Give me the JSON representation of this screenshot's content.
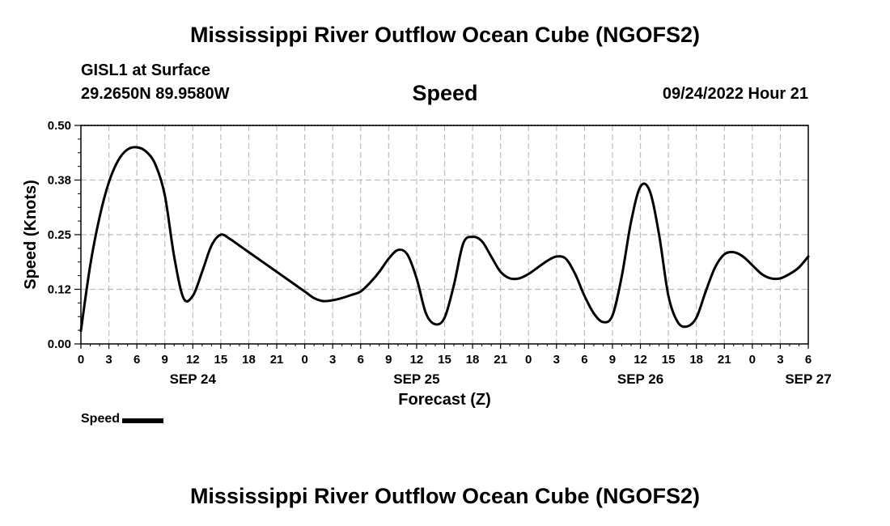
{
  "header": {
    "title": "Mississippi River Outflow Ocean Cube (NGOFS2)",
    "station": "GISL1 at Surface",
    "coords": "29.2650N  89.9580W",
    "variable": "Speed",
    "datetime": "09/24/2022 Hour 21"
  },
  "footer": {
    "title": "Mississippi River Outflow Ocean Cube (NGOFS2)"
  },
  "legend": {
    "label": "Speed"
  },
  "chart_data": {
    "type": "line",
    "title": "Speed",
    "xlabel": "Forecast (Z)",
    "ylabel": "Speed (Knots)",
    "ylim": [
      0,
      0.5
    ],
    "xlim": [
      0,
      78
    ],
    "x_unit": "hours from 0Z SEP 24",
    "grid": true,
    "yticks": [
      0,
      0.125,
      0.25,
      0.375,
      0.5
    ],
    "ytick_labels": [
      "0.00",
      "0.12",
      "0.25",
      "0.38",
      "0.50"
    ],
    "xticks": [
      0,
      3,
      6,
      9,
      12,
      15,
      18,
      21,
      24,
      27,
      30,
      33,
      36,
      39,
      42,
      45,
      48,
      51,
      54,
      57,
      60,
      63,
      66,
      69,
      72,
      75,
      78
    ],
    "xtick_labels": [
      "0",
      "3",
      "6",
      "9",
      "12",
      "15",
      "18",
      "21",
      "0",
      "3",
      "6",
      "9",
      "12",
      "15",
      "18",
      "21",
      "0",
      "3",
      "6",
      "9",
      "12",
      "15",
      "18",
      "21",
      "0",
      "3",
      "6"
    ],
    "date_labels": [
      {
        "x": 12,
        "label": "SEP 24"
      },
      {
        "x": 36,
        "label": "SEP 25"
      },
      {
        "x": 60,
        "label": "SEP 26"
      },
      {
        "x": 78,
        "label": "SEP 27"
      }
    ],
    "series": [
      {
        "name": "Speed",
        "color": "#000000",
        "x": [
          0,
          1,
          2,
          3,
          4,
          5,
          6,
          7,
          8,
          9,
          10,
          11,
          12,
          13,
          14,
          15,
          16,
          17,
          18,
          19,
          20,
          21,
          22,
          23,
          24,
          25,
          26,
          27,
          28,
          29,
          30,
          31,
          32,
          33,
          34,
          35,
          36,
          37,
          38,
          39,
          40,
          41,
          42,
          43,
          44,
          45,
          46,
          47,
          48,
          49,
          50,
          51,
          52,
          53,
          54,
          55,
          56,
          57,
          58,
          59,
          60,
          61,
          62,
          63,
          64,
          65,
          66,
          67,
          68,
          69,
          70,
          71,
          72,
          73,
          74,
          75,
          76,
          77,
          78
        ],
        "values": [
          0.03,
          0.18,
          0.29,
          0.37,
          0.42,
          0.445,
          0.45,
          0.44,
          0.41,
          0.34,
          0.2,
          0.105,
          0.11,
          0.165,
          0.225,
          0.25,
          0.24,
          0.225,
          0.21,
          0.195,
          0.18,
          0.165,
          0.15,
          0.135,
          0.12,
          0.105,
          0.098,
          0.1,
          0.105,
          0.112,
          0.12,
          0.14,
          0.165,
          0.195,
          0.215,
          0.205,
          0.15,
          0.07,
          0.045,
          0.06,
          0.135,
          0.23,
          0.245,
          0.235,
          0.2,
          0.165,
          0.15,
          0.15,
          0.16,
          0.175,
          0.19,
          0.2,
          0.195,
          0.16,
          0.11,
          0.07,
          0.05,
          0.065,
          0.155,
          0.28,
          0.36,
          0.35,
          0.25,
          0.11,
          0.05,
          0.04,
          0.06,
          0.12,
          0.175,
          0.205,
          0.21,
          0.2,
          0.18,
          0.16,
          0.15,
          0.15,
          0.16,
          0.175,
          0.2
        ]
      }
    ]
  }
}
